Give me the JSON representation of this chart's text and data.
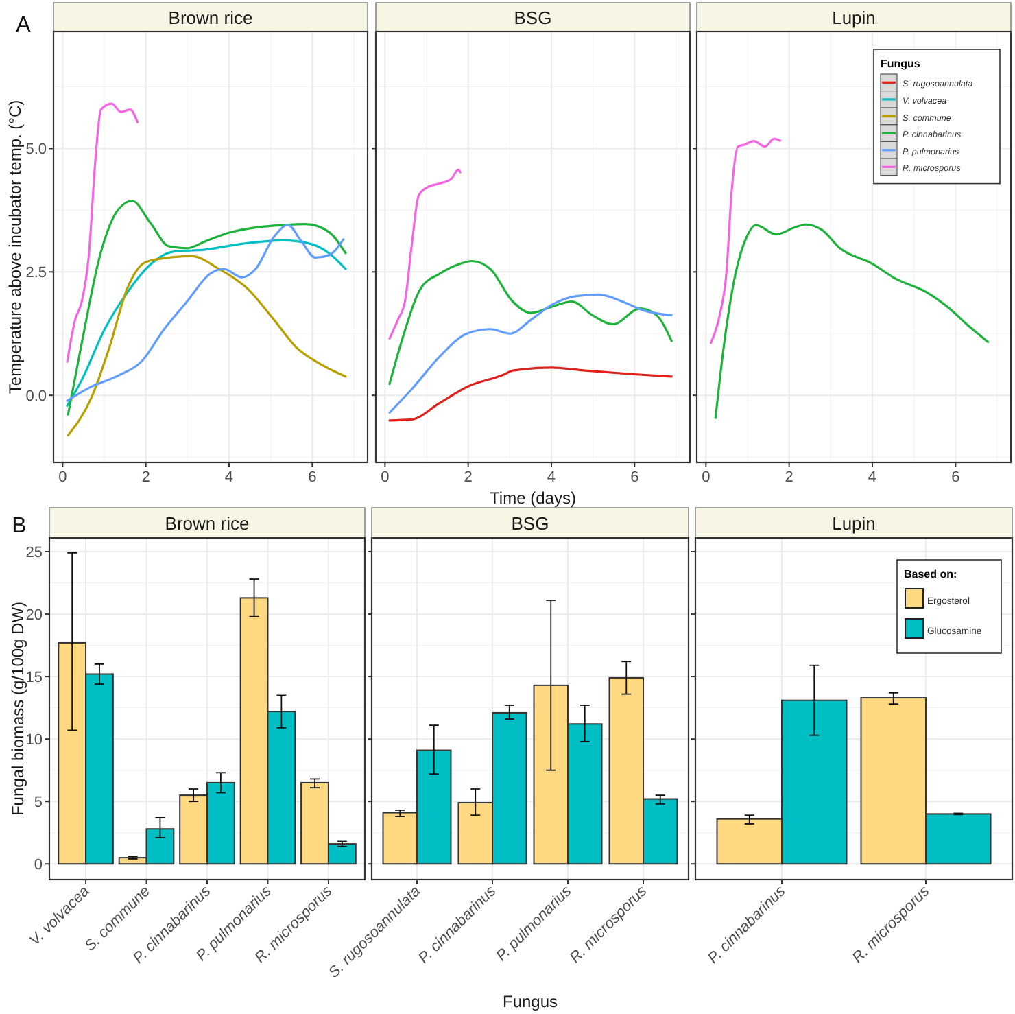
{
  "chart_data": [
    {
      "type": "line",
      "title": "Brown rice",
      "annotations": [
        "A"
      ],
      "ylabel": "Temperature above incubator temp. (°C)",
      "xlim": [
        -0.22,
        7.33
      ],
      "xticks": [
        0,
        2,
        4,
        6
      ],
      "ylim": [
        -1.36,
        7.37
      ],
      "yticks": [
        {
          "value": 0,
          "label": "0.0"
        },
        {
          "value": 2.5,
          "label": "2.5"
        },
        {
          "value": 5,
          "label": "5.0"
        }
      ],
      "grid": true,
      "series": [
        {
          "color": "#00BFC4",
          "x": [
            0.11,
            0.46,
            1.01,
            1.56,
            2.11,
            2.66,
            3.43,
            4.31,
            5.3,
            5.96,
            6.4,
            6.8
          ],
          "values": [
            -0.21,
            0.31,
            1.34,
            2.09,
            2.65,
            2.91,
            2.95,
            3.07,
            3.14,
            3.07,
            2.88,
            2.56
          ]
        },
        {
          "color": "#B79F00",
          "x": [
            0.13,
            0.68,
            1.12,
            1.56,
            2.0,
            2.55,
            3.1,
            3.76,
            4.42,
            5.08,
            5.63,
            6.18,
            6.8
          ],
          "values": [
            -0.81,
            -0.07,
            0.96,
            2.18,
            2.7,
            2.79,
            2.82,
            2.56,
            2.18,
            1.53,
            0.96,
            0.64,
            0.38
          ]
        },
        {
          "color": "#1DB33B",
          "x": [
            0.13,
            0.46,
            0.9,
            1.34,
            1.67,
            2.11,
            2.55,
            2.99,
            3.43,
            3.98,
            4.64,
            5.3,
            5.85,
            6.4,
            6.8
          ],
          "values": [
            -0.39,
            1.06,
            2.84,
            3.77,
            3.94,
            3.49,
            3.02,
            2.98,
            3.12,
            3.29,
            3.4,
            3.45,
            3.47,
            3.31,
            2.88
          ]
        },
        {
          "color": "#619CFF",
          "x": [
            0.11,
            0.68,
            1.34,
            1.89,
            2.44,
            2.99,
            3.54,
            3.87,
            4.31,
            4.64,
            5.08,
            5.41,
            5.74,
            6.07,
            6.4,
            6.75
          ],
          "values": [
            -0.11,
            0.17,
            0.4,
            0.68,
            1.34,
            1.9,
            2.46,
            2.56,
            2.39,
            2.56,
            3.21,
            3.45,
            3.12,
            2.79,
            2.84,
            3.16
          ]
        },
        {
          "color": "#F564E3",
          "x": [
            0.11,
            0.3,
            0.46,
            0.63,
            0.79,
            0.92,
            1.18,
            1.4,
            1.62,
            1.8
          ],
          "values": [
            0.68,
            1.53,
            1.9,
            2.84,
            4.8,
            5.79,
            5.91,
            5.74,
            5.79,
            5.53
          ]
        }
      ]
    },
    {
      "type": "line",
      "title": "BSG",
      "xlabel": "Time (days)",
      "xlim": [
        -0.22,
        7.33
      ],
      "xticks": [
        0,
        2,
        4,
        6
      ],
      "ylim": [
        -1.36,
        7.37
      ],
      "yticks": [
        0,
        2.5,
        5
      ],
      "grid": true,
      "tick_labels": "x",
      "series": [
        {
          "color": "#E0201B",
          "x": [
            0.11,
            0.64,
            1.31,
            1.97,
            2.86,
            3.07,
            4.0,
            4.82,
            5.92,
            6.89
          ],
          "values": [
            -0.51,
            -0.49,
            -0.16,
            0.17,
            0.42,
            0.5,
            0.56,
            0.5,
            0.43,
            0.38
          ]
        },
        {
          "color": "#1DB33B",
          "x": [
            0.11,
            0.42,
            0.87,
            1.31,
            1.76,
            2.09,
            2.53,
            3.07,
            3.51,
            4.0,
            4.49,
            4.99,
            5.48,
            6.14,
            6.53,
            6.89
          ],
          "values": [
            0.23,
            1.15,
            2.18,
            2.46,
            2.65,
            2.72,
            2.56,
            1.9,
            1.67,
            1.79,
            1.9,
            1.62,
            1.44,
            1.76,
            1.62,
            1.1
          ]
        },
        {
          "color": "#619CFF",
          "x": [
            0.11,
            0.64,
            1.31,
            1.97,
            2.53,
            3.01,
            3.51,
            4.0,
            4.6,
            5.15,
            5.7,
            6.25,
            6.89
          ],
          "values": [
            -0.35,
            0.12,
            0.78,
            1.25,
            1.34,
            1.25,
            1.53,
            1.83,
            2.01,
            2.04,
            1.9,
            1.71,
            1.62
          ]
        },
        {
          "color": "#F564E3",
          "x": [
            0.11,
            0.31,
            0.48,
            0.64,
            0.81,
            1.03,
            1.31,
            1.59,
            1.76,
            1.81
          ],
          "values": [
            1.15,
            1.53,
            1.9,
            3.02,
            4.05,
            4.22,
            4.29,
            4.38,
            4.57,
            4.52
          ]
        }
      ]
    },
    {
      "type": "line",
      "title": "Lupin",
      "legend_title": "Fungus",
      "xlim": [
        -0.22,
        7.33
      ],
      "xticks": [
        0,
        2,
        4,
        6
      ],
      "ylim": [
        -1.36,
        7.37
      ],
      "yticks": [
        0,
        2.5,
        5
      ],
      "grid": true,
      "legend": "top right",
      "tick_labels": "x",
      "series": [
        {
          "name": "S. rugosoannulata",
          "color": "#E0201B"
        },
        {
          "name": "V. volvacea",
          "color": "#00BFC4"
        },
        {
          "name": "S. commune",
          "color": "#B79F00"
        },
        {
          "name": "P. cinnabarinus",
          "color": "#1DB33B",
          "x": [
            0.23,
            0.44,
            0.71,
            0.98,
            1.2,
            1.69,
            2.13,
            2.4,
            2.79,
            3.22,
            3.99,
            4.54,
            5.3,
            5.85,
            6.28,
            6.78
          ],
          "values": [
            -0.46,
            1.06,
            2.46,
            3.21,
            3.45,
            3.26,
            3.4,
            3.46,
            3.35,
            2.98,
            2.67,
            2.37,
            2.09,
            1.76,
            1.43,
            1.08
          ]
        },
        {
          "name": "P. pulmonarius",
          "color": "#619CFF"
        },
        {
          "name": "R. microsporus",
          "color": "#F564E3",
          "x": [
            0.12,
            0.33,
            0.49,
            0.62,
            0.77,
            0.93,
            1.15,
            1.42,
            1.64,
            1.78
          ],
          "values": [
            1.06,
            1.62,
            2.46,
            4.15,
            5.04,
            5.08,
            5.15,
            5.04,
            5.2,
            5.16
          ]
        }
      ]
    },
    {
      "type": "bar",
      "title": "Brown rice",
      "annotations": [
        "B"
      ],
      "ylabel": "Fungal biomass (g/100g DW)",
      "categories": [
        "V. volvacea",
        "S. commune",
        "P. cinnabarinus",
        "P. pulmonarius",
        "R. microsporus"
      ],
      "ylim": [
        -1.25,
        26.1
      ],
      "yticks": [
        0,
        5,
        10,
        15,
        20,
        25
      ],
      "grid": true,
      "series": [
        {
          "color": "#FFD982",
          "values": [
            17.7,
            0.5,
            5.5,
            21.3,
            6.5
          ],
          "errors": [
            [
              10.7,
              24.9
            ],
            [
              0.4,
              0.6
            ],
            [
              5.0,
              6.0
            ],
            [
              19.8,
              22.8
            ],
            [
              6.1,
              6.8
            ]
          ]
        },
        {
          "color": "#00BFC4",
          "values": [
            15.2,
            2.8,
            6.5,
            12.2,
            1.6
          ],
          "errors": [
            [
              14.4,
              16.0
            ],
            [
              2.1,
              3.7
            ],
            [
              5.7,
              7.3
            ],
            [
              10.9,
              13.5
            ],
            [
              1.4,
              1.8
            ]
          ]
        }
      ]
    },
    {
      "type": "bar",
      "title": "BSG",
      "xlabel": "Fungus",
      "categories": [
        "S. rugosoannulata",
        "P. cinnabarinus",
        "P. pulmonarius",
        "R. microsporus"
      ],
      "ylim": [
        -1.25,
        26.1
      ],
      "yticks": [
        0,
        5,
        10,
        15,
        20,
        25
      ],
      "grid": true,
      "tick_labels": "x",
      "series": [
        {
          "color": "#FFD982",
          "values": [
            4.1,
            4.9,
            14.3,
            14.9
          ],
          "errors": [
            [
              3.8,
              4.3
            ],
            [
              3.9,
              6.0
            ],
            [
              7.5,
              21.1
            ],
            [
              13.6,
              16.2
            ]
          ]
        },
        {
          "color": "#00BFC4",
          "values": [
            9.1,
            12.1,
            11.2,
            5.2
          ],
          "errors": [
            [
              7.2,
              11.1
            ],
            [
              11.6,
              12.7
            ],
            [
              9.8,
              12.7
            ],
            [
              4.8,
              5.5
            ]
          ]
        }
      ]
    },
    {
      "type": "bar",
      "title": "Lupin",
      "legend_title": "Based on:",
      "categories": [
        "P. cinnabarinus",
        "R. microsporus"
      ],
      "ylim": [
        -1.25,
        26.1
      ],
      "yticks": [
        0,
        5,
        10,
        15,
        20,
        25
      ],
      "grid": true,
      "legend": "top right",
      "tick_labels": "x",
      "series": [
        {
          "name": "Ergosterol",
          "color": "#FFD982",
          "values": [
            3.6,
            13.3
          ],
          "errors": [
            [
              3.2,
              3.9
            ],
            [
              12.8,
              13.7
            ]
          ]
        },
        {
          "name": "Glucosamine",
          "color": "#00BFC4",
          "values": [
            13.1,
            4.0
          ],
          "errors": [
            [
              10.3,
              15.9
            ],
            [
              3.95,
              4.05
            ]
          ]
        }
      ]
    }
  ]
}
